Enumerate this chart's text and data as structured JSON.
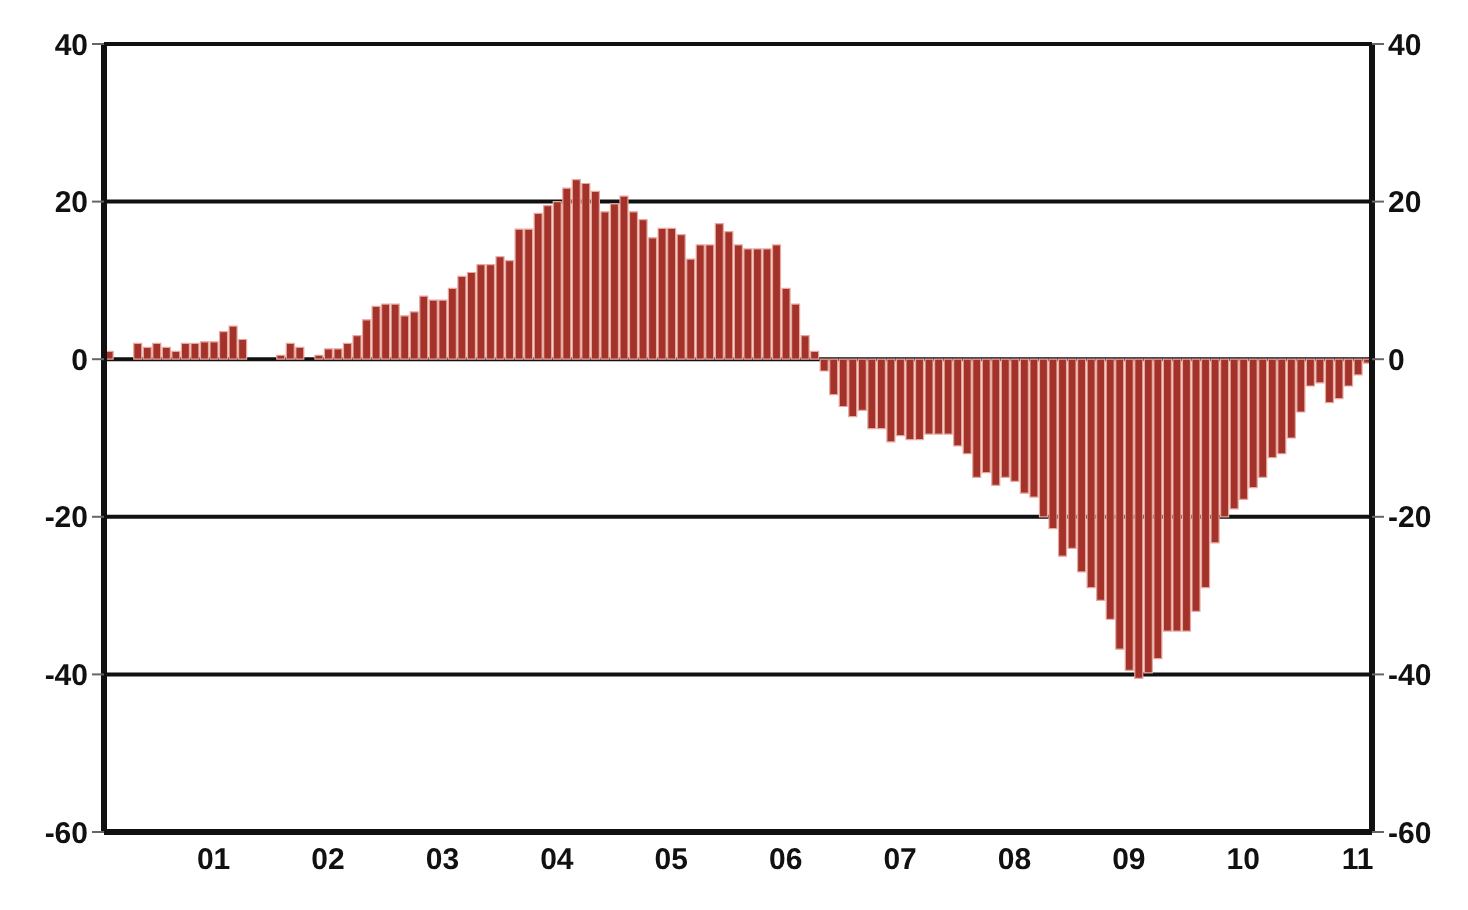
{
  "chart_data": {
    "type": "bar",
    "categories": [
      null,
      null,
      null,
      null,
      null,
      null,
      null,
      null,
      null,
      null,
      null,
      "01",
      null,
      null,
      null,
      null,
      null,
      null,
      null,
      null,
      null,
      null,
      null,
      "02",
      null,
      null,
      null,
      null,
      null,
      null,
      null,
      null,
      null,
      null,
      null,
      "03",
      null,
      null,
      null,
      null,
      null,
      null,
      null,
      null,
      null,
      null,
      null,
      "04",
      null,
      null,
      null,
      null,
      null,
      null,
      null,
      null,
      null,
      null,
      null,
      "05",
      null,
      null,
      null,
      null,
      null,
      null,
      null,
      null,
      null,
      null,
      null,
      "06",
      null,
      null,
      null,
      null,
      null,
      null,
      null,
      null,
      null,
      null,
      null,
      "07",
      null,
      null,
      null,
      null,
      null,
      null,
      null,
      null,
      null,
      null,
      null,
      "08",
      null,
      null,
      null,
      null,
      null,
      null,
      null,
      null,
      null,
      null,
      null,
      "09",
      null,
      null,
      null,
      null,
      null,
      null,
      null,
      null,
      null,
      null,
      null,
      "10",
      null,
      null,
      null,
      null,
      null,
      null,
      null,
      null,
      null,
      null,
      null,
      "11",
      null
    ],
    "values": [
      1,
      0,
      0,
      2,
      1.5,
      2,
      1.5,
      1,
      2,
      2,
      2.2,
      2.2,
      3.5,
      4.2,
      2.5,
      0,
      0,
      0,
      0.5,
      2,
      1.5,
      0,
      0.5,
      1.3,
      1.3,
      2,
      3,
      5,
      6.7,
      7,
      7,
      5.5,
      6,
      8,
      7.5,
      7.5,
      9,
      10.5,
      11,
      12,
      12,
      13,
      12.5,
      16.5,
      16.5,
      18.5,
      19.5,
      20,
      21.7,
      22.8,
      22.3,
      21.3,
      18.7,
      19.7,
      20.7,
      18.7,
      17.7,
      15.4,
      16.6,
      16.6,
      15.8,
      12.7,
      14.5,
      14.5,
      17.2,
      16.2,
      14.5,
      14,
      14,
      14,
      14.5,
      9,
      7,
      3,
      1,
      -1.5,
      -4.5,
      -6,
      -7.3,
      -6.5,
      -8.8,
      -8.8,
      -10.5,
      -9.7,
      -10.2,
      -10.2,
      -9.5,
      -9.5,
      -9.5,
      -11,
      -12,
      -15,
      -14.4,
      -16,
      -15,
      -15.5,
      -17,
      -17.5,
      -20,
      -21.5,
      -25,
      -24,
      -27,
      -29,
      -30.6,
      -33,
      -36.8,
      -39.5,
      -40.5,
      -39.8,
      -38,
      -34.5,
      -34.5,
      -34.5,
      -32,
      -29,
      -23.3,
      -20,
      -19,
      -17.8,
      -16.3,
      -15,
      -12.5,
      -12,
      -10,
      -6.7,
      -3.4,
      -3,
      -5.5,
      -5,
      -3.4,
      -2,
      -0.5
    ],
    "color": "#a3322a",
    "ylim": [
      -60,
      40
    ],
    "yticks": [
      -60,
      -40,
      -20,
      0,
      20,
      40
    ],
    "y2lim": [
      -60,
      40
    ],
    "y2ticks": [
      -60,
      -40,
      -20,
      0,
      20,
      40
    ],
    "grid": "y"
  }
}
